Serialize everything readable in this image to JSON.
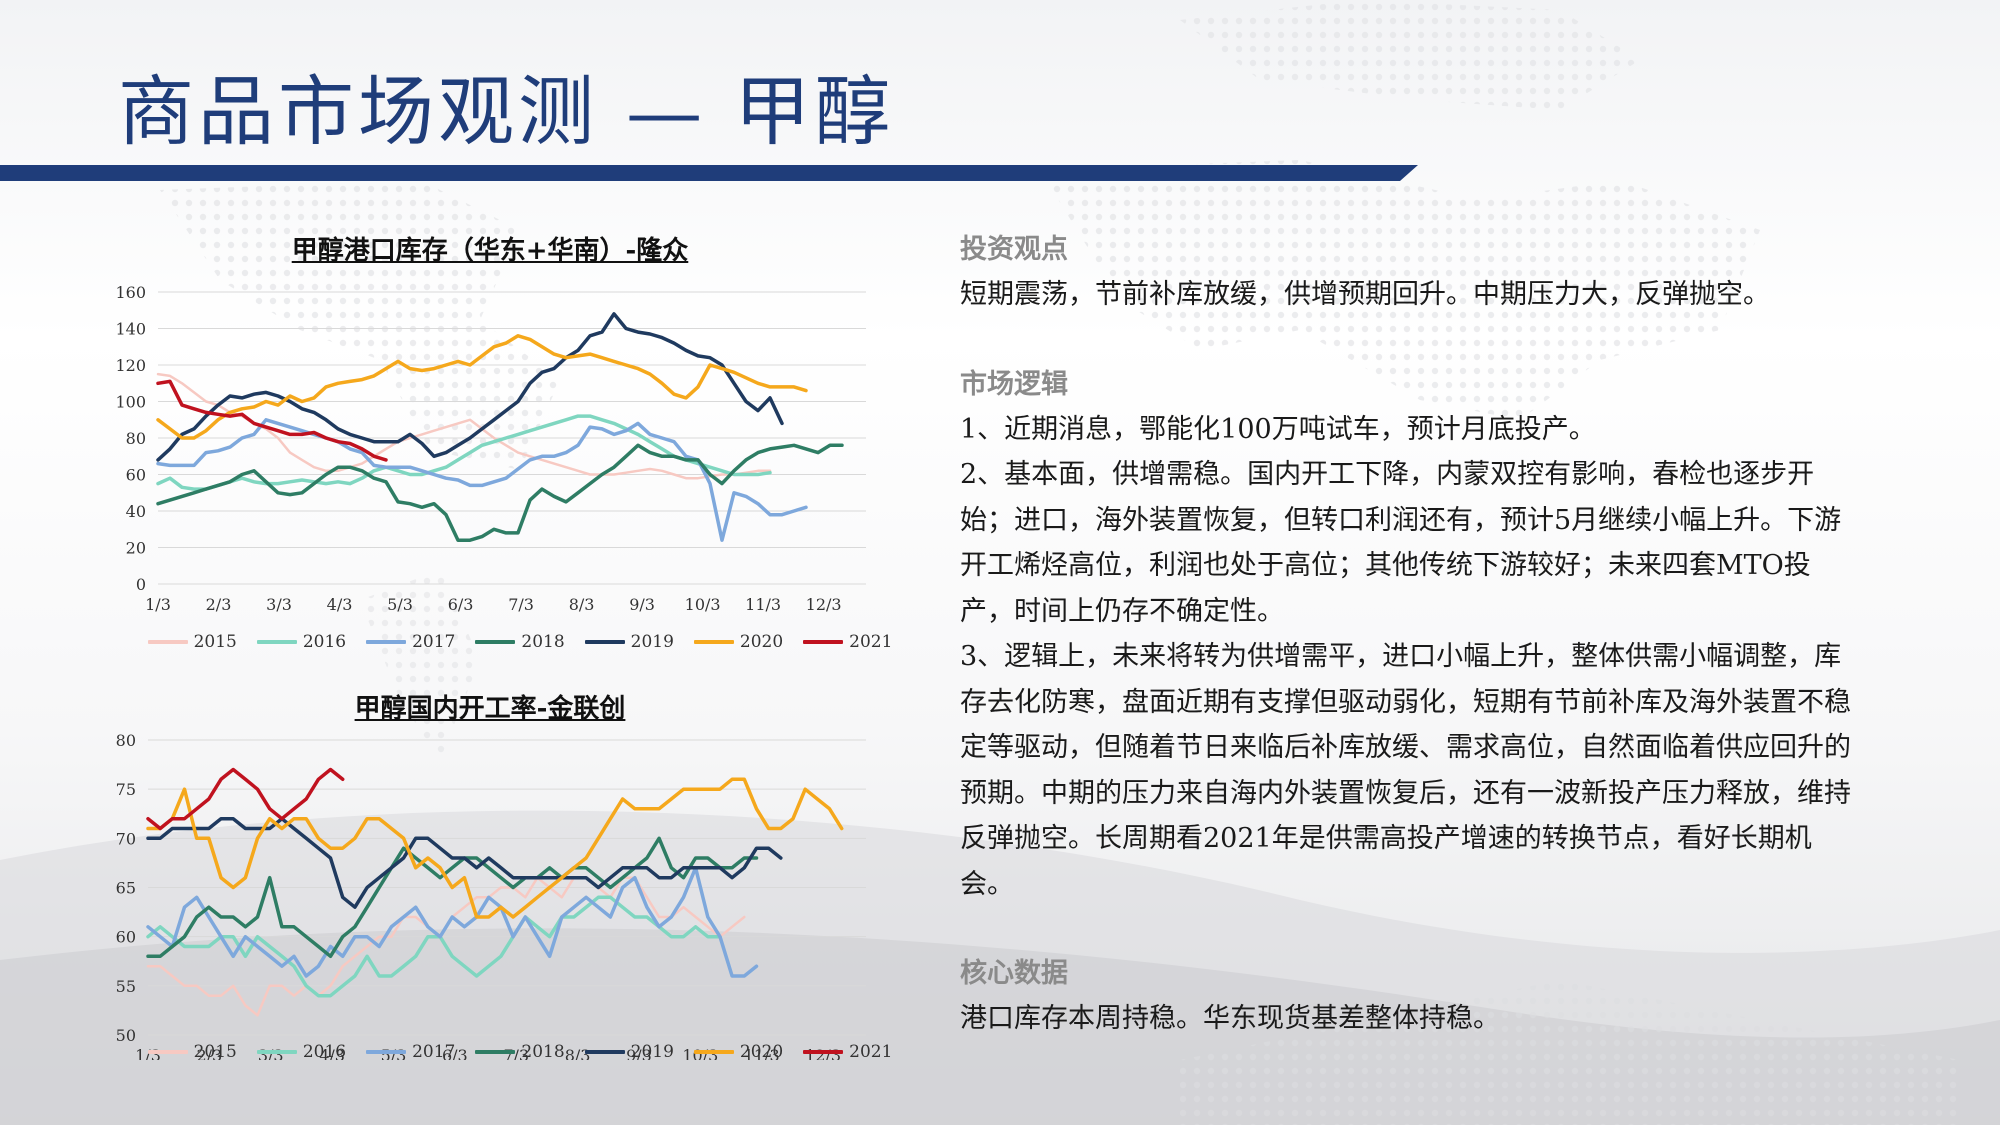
{
  "page": {
    "title": "商品市场观测 — 甲醇"
  },
  "colors": {
    "title": "#1f3d7a",
    "bar": "#1f3d7a",
    "series_2015": "#f7c9c2",
    "series_2016": "#7fd6c0",
    "series_2017": "#7ea8dc",
    "series_2018": "#2e7d64",
    "series_2019": "#1f3a5f",
    "series_2020": "#f5a81c",
    "series_2021": "#c0121f"
  },
  "right": {
    "sections": [
      {
        "head": "投资观点",
        "paras": [
          "短期震荡，节前补库放缓，供增预期回升。中期压力大，反弹抛空。"
        ]
      },
      {
        "head": "市场逻辑",
        "paras": [
          "1、近期消息，鄂能化100万吨试车，预计月底投产。",
          "2、基本面，供增需稳。国内开工下降，内蒙双控有影响，春检也逐步开始；进口，海外装置恢复，但转口利润还有，预计5月继续小幅上升。下游开工烯烃高位，利润也处于高位；其他传统下游较好；未来四套MTO投产，时间上仍存不确定性。",
          "3、逻辑上，未来将转为供增需平，进口小幅上升，整体供需小幅调整，库存去化防寒，盘面近期有支撑但驱动弱化，短期有节前补库及海外装置不稳定等驱动，但随着节日来临后补库放缓、需求高位，自然面临着供应回升的预期。中期的压力来自海内外装置恢复后，还有一波新投产压力释放，维持反弹抛空。长周期看2021年是供需高投产增速的转换节点，看好长期机会。"
        ]
      },
      {
        "head": "核心数据",
        "paras": [
          "港口库存本周持稳。华东现货基差整体持稳。"
        ]
      }
    ]
  },
  "chart_data": [
    {
      "type": "line",
      "title": "甲醇港口库存（华东+华南）-隆众",
      "x_ticks": [
        "1/3",
        "2/3",
        "3/3",
        "4/3",
        "5/3",
        "6/3",
        "7/3",
        "8/3",
        "9/3",
        "10/3",
        "11/3",
        "12/3"
      ],
      "ylim": [
        0,
        160
      ],
      "y_ticks": [
        0,
        20,
        40,
        60,
        80,
        100,
        120,
        140,
        160
      ],
      "grid": true,
      "legend": "bottom",
      "series": [
        {
          "name": "2015",
          "color_key": "series_2015",
          "values": [
            115,
            114,
            110,
            105,
            100,
            98,
            94,
            92,
            88,
            85,
            80,
            72,
            68,
            64,
            62,
            62,
            64,
            66,
            70,
            74,
            78,
            80,
            82,
            84,
            86,
            88,
            90,
            85,
            80,
            76,
            72,
            70,
            68,
            66,
            64,
            62,
            60,
            60,
            60,
            61,
            62,
            63,
            62,
            60,
            58,
            58,
            59,
            60,
            60,
            61,
            62,
            62
          ]
        },
        {
          "name": "2016",
          "color_key": "series_2016",
          "values": [
            55,
            58,
            53,
            52,
            52,
            54,
            56,
            58,
            56,
            55,
            55,
            56,
            57,
            56,
            55,
            56,
            55,
            58,
            62,
            64,
            62,
            60,
            60,
            62,
            64,
            68,
            72,
            76,
            78,
            80,
            82,
            84,
            86,
            88,
            90,
            92,
            92,
            90,
            88,
            85,
            82,
            78,
            74,
            70,
            68,
            66,
            64,
            62,
            60,
            60,
            60,
            61
          ]
        },
        {
          "name": "2017",
          "color_key": "series_2017",
          "values": [
            66,
            65,
            65,
            65,
            72,
            73,
            75,
            80,
            82,
            90,
            88,
            86,
            84,
            82,
            80,
            78,
            74,
            72,
            65,
            64,
            64,
            64,
            62,
            60,
            58,
            57,
            54,
            54,
            56,
            58,
            63,
            68,
            70,
            70,
            72,
            76,
            86,
            85,
            82,
            84,
            88,
            82,
            80,
            78,
            70,
            68,
            55,
            24,
            50,
            48,
            44,
            38,
            38,
            40,
            42
          ]
        },
        {
          "name": "2018",
          "color_key": "series_2018",
          "values": [
            44,
            46,
            48,
            50,
            52,
            54,
            56,
            60,
            62,
            56,
            50,
            49,
            50,
            55,
            60,
            64,
            64,
            62,
            58,
            56,
            45,
            44,
            42,
            44,
            38,
            24,
            24,
            26,
            30,
            28,
            28,
            46,
            52,
            48,
            45,
            50,
            55,
            60,
            64,
            70,
            76,
            72,
            70,
            70,
            68,
            68,
            60,
            55,
            62,
            68,
            72,
            74,
            75,
            76,
            74,
            72,
            76,
            76
          ]
        },
        {
          "name": "2019",
          "color_key": "series_2019",
          "values": [
            68,
            74,
            82,
            85,
            92,
            98,
            103,
            102,
            104,
            105,
            103,
            100,
            96,
            94,
            90,
            85,
            82,
            80,
            78,
            78,
            78,
            82,
            77,
            70,
            72,
            76,
            80,
            85,
            90,
            95,
            100,
            110,
            116,
            118,
            124,
            128,
            136,
            138,
            148,
            140,
            138,
            137,
            135,
            132,
            128,
            125,
            124,
            120,
            110,
            100,
            95,
            102,
            88
          ]
        },
        {
          "name": "2020",
          "color_key": "series_2020",
          "values": [
            90,
            85,
            80,
            80,
            84,
            90,
            94,
            96,
            97,
            100,
            98,
            103,
            100,
            102,
            108,
            110,
            111,
            112,
            114,
            118,
            122,
            118,
            117,
            118,
            120,
            122,
            120,
            125,
            130,
            132,
            136,
            134,
            130,
            126,
            124,
            125,
            126,
            124,
            122,
            120,
            118,
            115,
            110,
            104,
            102,
            108,
            120,
            118,
            116,
            113,
            110,
            108,
            108,
            108,
            106
          ]
        },
        {
          "name": "2021",
          "color_key": "series_2021",
          "values": [
            110,
            111,
            98,
            96,
            94,
            93,
            92,
            93,
            88,
            86,
            84,
            82,
            82,
            83,
            80,
            78,
            77,
            74,
            70,
            68
          ]
        }
      ]
    },
    {
      "type": "line",
      "title": "甲醇国内开工率-金联创",
      "x_ticks": [
        "1/3",
        "2/3",
        "3/3",
        "4/3",
        "5/3",
        "6/3",
        "7/3",
        "8/3",
        "9/3",
        "10/3",
        "11/3",
        "12/3"
      ],
      "ylim": [
        50,
        80
      ],
      "y_ticks": [
        50,
        55,
        60,
        65,
        70,
        75,
        80
      ],
      "grid": true,
      "legend": "bottom",
      "series": [
        {
          "name": "2015",
          "color_key": "series_2015",
          "values": [
            57,
            57,
            56,
            55,
            55,
            54,
            54,
            55,
            53,
            52,
            55,
            55,
            54,
            55,
            54,
            55,
            57,
            58,
            59,
            60,
            60,
            62,
            62,
            61,
            60,
            62,
            63,
            64,
            64,
            65,
            65,
            64,
            66,
            65,
            64,
            66,
            66,
            65,
            64,
            66,
            66,
            64,
            62,
            62,
            63,
            62,
            61,
            60,
            61,
            62
          ]
        },
        {
          "name": "2016",
          "color_key": "series_2016",
          "values": [
            60,
            61,
            60,
            59,
            59,
            59,
            60,
            60,
            58,
            60,
            59,
            58,
            57,
            55,
            54,
            54,
            55,
            56,
            58,
            56,
            56,
            57,
            58,
            60,
            60,
            58,
            57,
            56,
            57,
            58,
            60,
            62,
            61,
            60,
            62,
            62,
            63,
            64,
            64,
            63,
            62,
            62,
            61,
            60,
            60,
            61,
            60,
            60
          ]
        },
        {
          "name": "2017",
          "color_key": "series_2017",
          "values": [
            61,
            60,
            59,
            63,
            64,
            62,
            60,
            58,
            60,
            59,
            58,
            57,
            58,
            56,
            57,
            59,
            58,
            60,
            60,
            59,
            61,
            62,
            63,
            61,
            60,
            62,
            61,
            62,
            64,
            63,
            60,
            62,
            60,
            58,
            62,
            63,
            64,
            63,
            62,
            65,
            66,
            63,
            61,
            62,
            64,
            67,
            62,
            60,
            56,
            56,
            57
          ]
        },
        {
          "name": "2018",
          "color_key": "series_2018",
          "values": [
            58,
            58,
            59,
            60,
            62,
            63,
            62,
            62,
            61,
            62,
            66,
            61,
            61,
            60,
            59,
            58,
            60,
            61,
            63,
            65,
            67,
            69,
            68,
            67,
            66,
            67,
            68,
            68,
            67,
            66,
            65,
            66,
            66,
            67,
            66,
            67,
            67,
            66,
            65,
            66,
            67,
            68,
            70,
            67,
            66,
            68,
            68,
            67,
            67,
            68,
            68
          ]
        },
        {
          "name": "2019",
          "color_key": "series_2019",
          "values": [
            70,
            70,
            71,
            71,
            71,
            71,
            72,
            72,
            71,
            71,
            71,
            72,
            71,
            70,
            69,
            68,
            64,
            63,
            65,
            66,
            67,
            68,
            70,
            70,
            69,
            68,
            68,
            67,
            68,
            67,
            66,
            66,
            66,
            66,
            66,
            66,
            66,
            65,
            66,
            67,
            67,
            67,
            66,
            66,
            67,
            67,
            67,
            67,
            66,
            67,
            69,
            69,
            68
          ]
        },
        {
          "name": "2020",
          "color_key": "series_2020",
          "values": [
            71,
            71,
            72,
            75,
            70,
            70,
            66,
            65,
            66,
            70,
            72,
            71,
            72,
            72,
            70,
            69,
            69,
            70,
            72,
            72,
            71,
            70,
            67,
            68,
            67,
            65,
            66,
            62,
            62,
            63,
            62,
            63,
            64,
            65,
            66,
            67,
            68,
            70,
            72,
            74,
            73,
            73,
            73,
            74,
            75,
            75,
            75,
            75,
            76,
            76,
            73,
            71,
            71,
            72,
            75,
            74,
            73,
            71
          ]
        },
        {
          "name": "2021",
          "color_key": "series_2021",
          "values": [
            72,
            71,
            72,
            72,
            73,
            74,
            76,
            77,
            76,
            75,
            73,
            72,
            73,
            74,
            76,
            77,
            76
          ]
        }
      ]
    }
  ]
}
